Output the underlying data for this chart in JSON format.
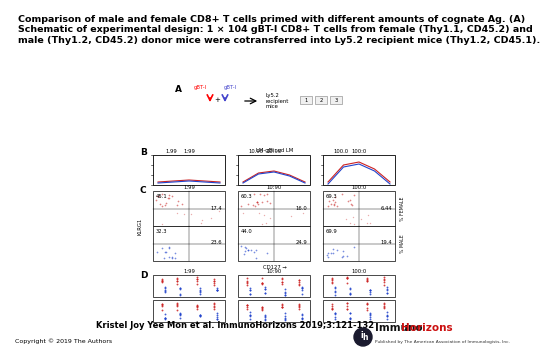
{
  "title_line1": "Comparison of male and female CD8+ T cells primed with different amounts of cognate Ag. (A)",
  "title_line2": "Schematic of experimental design: 1 × 104 gBT-I CD8+ T cells from female (Thy1.1, CD45.2) and",
  "title_line3": "male (Thy1.2, CD45.2) donor mice were cotransferred into Ly5.2 recipient mice (Thy1.2, CD45.1).",
  "citation_text": "Kristel Joy Yee Mon et al. ImmunoHorizons 2019;3:121-132",
  "copyright_text": "Copyright © 2019 The Authors",
  "logo_text_immuno": "Immuno",
  "logo_text_horizons": "Horizons",
  "logo_subtext": "Published by The American Association of Immunologists, Inc.",
  "bg_color": "#ffffff",
  "title_fontsize": 6.8,
  "citation_fontsize": 6.0,
  "copyright_fontsize": 4.5,
  "panel_label_fontsize": 6.5,
  "small_fontsize": 4.5,
  "tiny_fontsize": 3.8
}
